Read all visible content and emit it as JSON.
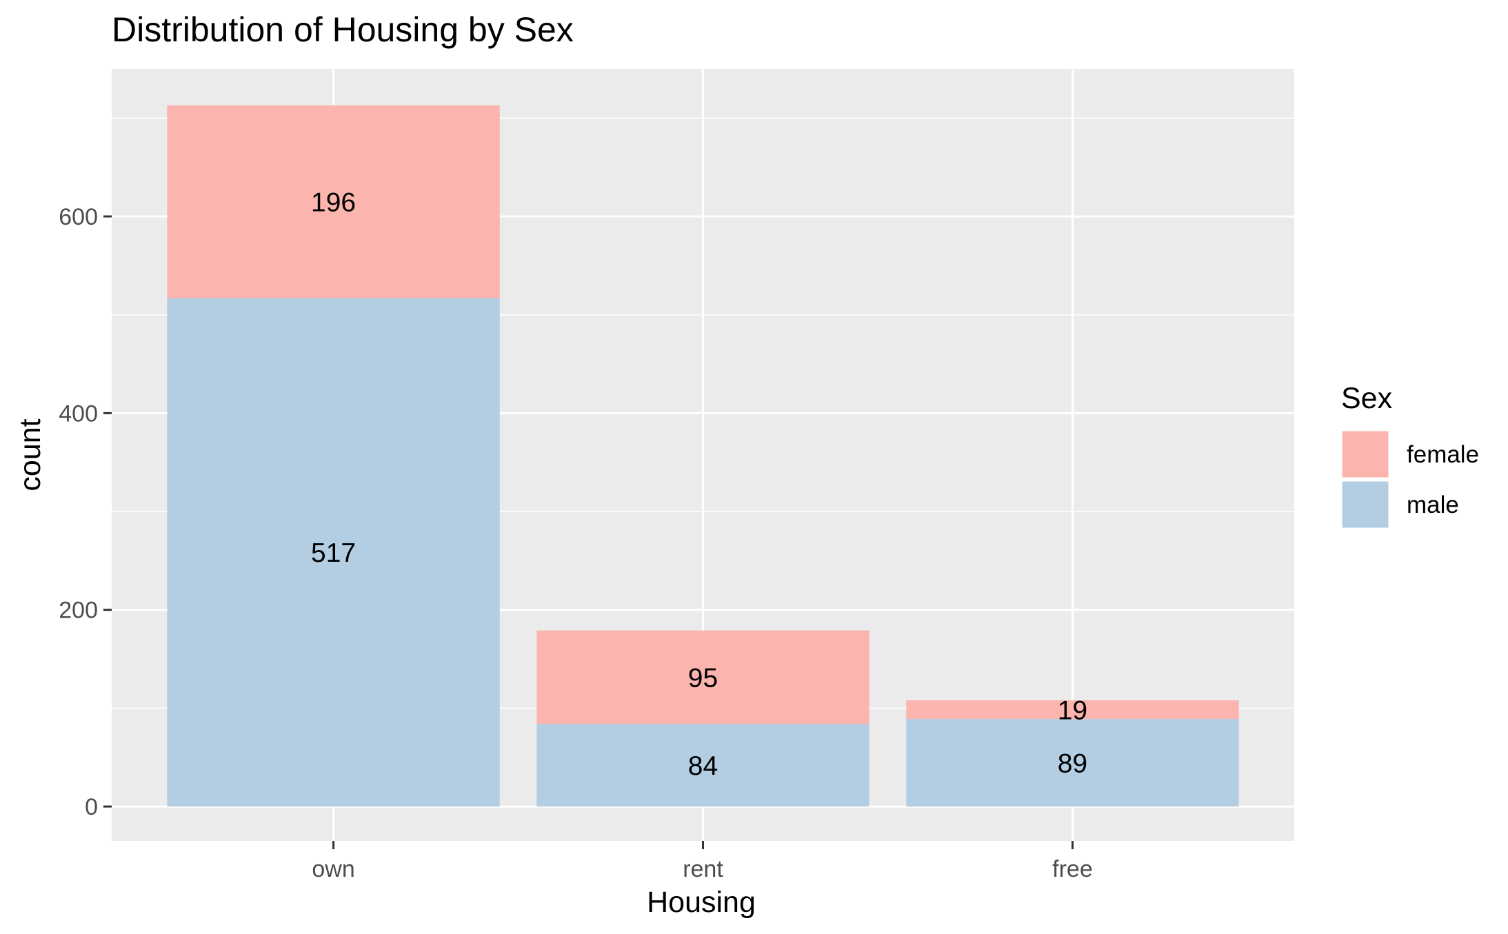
{
  "chart_data": {
    "type": "bar",
    "stacked": true,
    "title": "Distribution of Housing by Sex",
    "xlabel": "Housing",
    "ylabel": "count",
    "categories": [
      "own",
      "rent",
      "free"
    ],
    "series": [
      {
        "name": "female",
        "values": [
          196,
          95,
          19
        ],
        "color": "#FBB4AE"
      },
      {
        "name": "male",
        "values": [
          517,
          84,
          89
        ],
        "color": "#B3CDE3"
      }
    ],
    "stack_order_bottom_to_top": [
      "male",
      "female"
    ],
    "ylim": [
      -35,
      750
    ],
    "yticks": [
      0,
      200,
      400,
      600
    ],
    "grid": true,
    "legend": {
      "title": "Sex",
      "position": "right",
      "items": [
        "female",
        "male"
      ]
    },
    "panel_background": "#EBEBEB",
    "grid_color": "#FFFFFF"
  }
}
